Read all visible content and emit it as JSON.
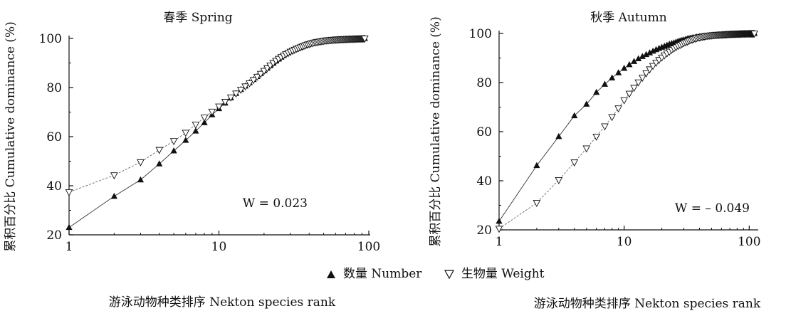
{
  "figure": {
    "legend": {
      "number_label": "数量 Number",
      "weight_label": "生物量 Weight"
    }
  },
  "chart_data": [
    {
      "type": "scatter",
      "title": "春季 Spring",
      "xlabel": "游泳动物种类排序 Nekton species rank",
      "ylabel": "累积百分比 Cumulative dominance (%)",
      "x_scale": "log",
      "xlim": [
        1,
        100
      ],
      "ylim": [
        20,
        100
      ],
      "x_ticks": [
        1,
        10,
        100
      ],
      "x_tick_labels": [
        "1",
        "10",
        "100"
      ],
      "y_ticks": [
        20,
        40,
        60,
        80,
        100
      ],
      "y_tick_labels": [
        "20",
        "40",
        "60",
        "80",
        "100"
      ],
      "annotation": "W = 0.023",
      "series": [
        {
          "name": "数量 Number",
          "marker": "filled-triangle",
          "x": [
            1,
            2,
            3,
            4,
            5,
            6,
            7,
            8,
            9,
            10,
            11,
            12,
            13,
            14,
            15,
            16,
            17,
            18,
            19,
            20,
            21,
            22,
            23,
            24,
            25,
            26,
            27,
            28,
            29,
            30,
            31,
            32,
            33,
            34,
            35,
            36,
            37,
            38,
            39,
            40,
            41,
            42,
            43,
            44,
            45,
            46,
            47,
            48,
            49,
            50,
            51,
            52,
            53,
            54,
            55,
            56,
            57,
            58,
            59,
            60,
            61,
            62,
            63,
            64,
            65,
            66,
            67,
            68,
            69,
            70,
            71,
            72,
            73,
            74,
            75,
            76,
            77,
            78,
            79,
            80,
            81,
            82,
            83,
            84,
            85,
            86,
            87,
            88,
            89,
            90,
            91,
            92,
            93,
            94
          ],
          "y": [
            23.0,
            35.7,
            42.4,
            48.9,
            54.2,
            58.5,
            62.3,
            65.7,
            68.9,
            71.4,
            73.7,
            75.8,
            77.6,
            79.2,
            80.6,
            82.0,
            83.3,
            84.5,
            85.7,
            86.8,
            87.9,
            88.9,
            89.9,
            90.8,
            91.6,
            92.4,
            93.1,
            93.7,
            94.2,
            94.7,
            95.1,
            95.5,
            95.9,
            96.2,
            96.5,
            96.8,
            97.1,
            97.4,
            97.6,
            97.8,
            98.0,
            98.2,
            98.4,
            98.5,
            98.6,
            98.7,
            98.8,
            98.9,
            99.0,
            99.1,
            99.15,
            99.2,
            99.25,
            99.3,
            99.35,
            99.4,
            99.43,
            99.46,
            99.49,
            99.52,
            99.55,
            99.58,
            99.6,
            99.62,
            99.64,
            99.66,
            99.68,
            99.7,
            99.72,
            99.74,
            99.76,
            99.78,
            99.8,
            99.81,
            99.82,
            99.83,
            99.84,
            99.85,
            99.86,
            99.87,
            99.88,
            99.89,
            99.9,
            99.91,
            99.92,
            99.93,
            99.94,
            99.95,
            99.96,
            99.97,
            99.98,
            99.99,
            100.0,
            100.0
          ]
        },
        {
          "name": "生物量 Weight",
          "marker": "open-triangle-down",
          "x": [
            1,
            2,
            3,
            4,
            5,
            6,
            7,
            8,
            9,
            10,
            11,
            12,
            13,
            14,
            15,
            16,
            17,
            18,
            19,
            20,
            21,
            22,
            23,
            24,
            25,
            26,
            27,
            28,
            29,
            30,
            31,
            32,
            33,
            34,
            35,
            36,
            37,
            38,
            39,
            40,
            41,
            42,
            43,
            44,
            45,
            46,
            47,
            48,
            49,
            50,
            51,
            52,
            53,
            54,
            55,
            56,
            57,
            58,
            59,
            60,
            61,
            62,
            63,
            64,
            65,
            66,
            67,
            68,
            69,
            70,
            71,
            72,
            73,
            74,
            75,
            76,
            77,
            78,
            79,
            80,
            81,
            82,
            83,
            84,
            85,
            86,
            87,
            88,
            89,
            90,
            91,
            92,
            93,
            94
          ],
          "y": [
            37.4,
            44.3,
            49.6,
            54.6,
            58.2,
            61.6,
            64.9,
            67.8,
            70.2,
            72.3,
            74.2,
            76.0,
            77.6,
            79.1,
            80.5,
            81.8,
            83.1,
            84.4,
            85.6,
            86.8,
            87.9,
            89.0,
            90.0,
            90.9,
            91.7,
            92.4,
            93.0,
            93.6,
            94.1,
            94.6,
            95.0,
            95.4,
            95.8,
            96.1,
            96.4,
            96.7,
            97.0,
            97.3,
            97.5,
            97.7,
            97.9,
            98.1,
            98.3,
            98.4,
            98.5,
            98.6,
            98.7,
            98.8,
            98.9,
            99.0,
            99.1,
            99.15,
            99.2,
            99.25,
            99.3,
            99.35,
            99.4,
            99.43,
            99.46,
            99.49,
            99.52,
            99.55,
            99.58,
            99.6,
            99.62,
            99.64,
            99.66,
            99.68,
            99.7,
            99.72,
            99.74,
            99.76,
            99.78,
            99.8,
            99.81,
            99.82,
            99.83,
            99.84,
            99.85,
            99.86,
            99.87,
            99.88,
            99.89,
            99.9,
            99.91,
            99.92,
            99.93,
            99.94,
            99.95,
            99.96,
            99.97,
            99.98,
            99.99,
            100.0
          ]
        }
      ]
    },
    {
      "type": "scatter",
      "title": "秋季 Autumn",
      "xlabel": "游泳动物种类排序 Nekton species rank",
      "ylabel": "累积百分比 Cumulative dominance (%)",
      "x_scale": "log",
      "xlim": [
        1,
        115
      ],
      "ylim": [
        20,
        100
      ],
      "x_ticks": [
        1,
        10,
        100
      ],
      "x_tick_labels": [
        "1",
        "10",
        "100"
      ],
      "y_ticks": [
        20,
        40,
        60,
        80,
        100
      ],
      "y_tick_labels": [
        "20",
        "40",
        "60",
        "80",
        "100"
      ],
      "annotation": "W = – 0.049",
      "series": [
        {
          "name": "数量 Number",
          "marker": "filled-triangle",
          "x": [
            1,
            2,
            3,
            4,
            5,
            6,
            7,
            8,
            9,
            10,
            11,
            12,
            13,
            14,
            15,
            16,
            17,
            18,
            19,
            20,
            21,
            22,
            23,
            24,
            25,
            26,
            27,
            28,
            29,
            30,
            31,
            32,
            33,
            34,
            35,
            36,
            37,
            38,
            39,
            40,
            41,
            42,
            43,
            44,
            45,
            46,
            47,
            48,
            49,
            50,
            51,
            52,
            53,
            54,
            55,
            56,
            57,
            58,
            59,
            60,
            61,
            62,
            63,
            64,
            65,
            66,
            67,
            68,
            69,
            70,
            71,
            72,
            73,
            74,
            75,
            76,
            77,
            78,
            79,
            80,
            81,
            82,
            83,
            84,
            85,
            86,
            87,
            88,
            89,
            90,
            91,
            92,
            93,
            94,
            95,
            96,
            97,
            98,
            99,
            100,
            101,
            102,
            103,
            104,
            105,
            106,
            107,
            108,
            109,
            110
          ],
          "y": [
            23.5,
            46.2,
            58.0,
            66.5,
            71.2,
            76.0,
            79.3,
            81.9,
            84.0,
            85.8,
            87.3,
            88.6,
            89.7,
            90.6,
            91.4,
            92.1,
            92.8,
            93.4,
            93.9,
            94.4,
            94.8,
            95.2,
            95.6,
            95.9,
            96.2,
            96.5,
            96.8,
            97.0,
            97.2,
            97.4,
            97.6,
            97.8,
            98.0,
            98.1,
            98.2,
            98.3,
            98.4,
            98.5,
            98.6,
            98.7,
            98.8,
            98.85,
            98.9,
            98.95,
            99.0,
            99.05,
            99.1,
            99.15,
            99.2,
            99.25,
            99.3,
            99.33,
            99.36,
            99.39,
            99.42,
            99.45,
            99.48,
            99.5,
            99.52,
            99.54,
            99.56,
            99.58,
            99.6,
            99.62,
            99.64,
            99.66,
            99.68,
            99.7,
            99.72,
            99.74,
            99.76,
            99.77,
            99.78,
            99.79,
            99.8,
            99.81,
            99.82,
            99.83,
            99.84,
            99.85,
            99.86,
            99.87,
            99.88,
            99.89,
            99.9,
            99.91,
            99.92,
            99.93,
            99.94,
            99.95,
            99.95,
            99.96,
            99.96,
            99.97,
            99.97,
            99.98,
            99.98,
            99.98,
            99.99,
            99.99,
            99.99,
            99.99,
            100.0,
            100.0,
            100.0,
            100.0,
            100.0,
            100.0,
            100.0,
            100.0
          ]
        },
        {
          "name": "生物量 Weight",
          "marker": "open-triangle-down",
          "x": [
            1,
            2,
            3,
            4,
            5,
            6,
            7,
            8,
            9,
            10,
            11,
            12,
            13,
            14,
            15,
            16,
            17,
            18,
            19,
            20,
            21,
            22,
            23,
            24,
            25,
            26,
            27,
            28,
            29,
            30,
            31,
            32,
            33,
            34,
            35,
            36,
            37,
            38,
            39,
            40,
            41,
            42,
            43,
            44,
            45,
            46,
            47,
            48,
            49,
            50,
            51,
            52,
            53,
            54,
            55,
            56,
            57,
            58,
            59,
            60,
            61,
            62,
            63,
            64,
            65,
            66,
            67,
            68,
            69,
            70,
            71,
            72,
            73,
            74,
            75,
            76,
            77,
            78,
            79,
            80,
            81,
            82,
            83,
            84,
            85,
            86,
            87,
            88,
            89,
            90,
            91,
            92,
            93,
            94,
            95,
            96,
            97,
            98,
            99,
            100,
            101,
            102,
            103,
            104,
            105,
            106,
            107,
            108,
            109,
            110
          ],
          "y": [
            20.5,
            31.0,
            40.3,
            47.5,
            53.2,
            58.0,
            62.2,
            66.0,
            69.5,
            72.8,
            75.5,
            77.9,
            80.1,
            82.0,
            83.8,
            85.4,
            86.8,
            88.1,
            89.2,
            90.2,
            91.1,
            91.9,
            92.6,
            93.3,
            93.9,
            94.4,
            94.9,
            95.3,
            95.7,
            96.1,
            96.4,
            96.7,
            97.0,
            97.3,
            97.5,
            97.7,
            97.9,
            98.1,
            98.3,
            98.4,
            98.5,
            98.6,
            98.7,
            98.8,
            98.9,
            99.0,
            99.05,
            99.1,
            99.15,
            99.2,
            99.25,
            99.3,
            99.33,
            99.36,
            99.39,
            99.42,
            99.45,
            99.48,
            99.5,
            99.52,
            99.54,
            99.56,
            99.58,
            99.6,
            99.62,
            99.64,
            99.66,
            99.68,
            99.7,
            99.72,
            99.74,
            99.76,
            99.77,
            99.78,
            99.79,
            99.8,
            99.81,
            99.82,
            99.83,
            99.84,
            99.85,
            99.86,
            99.87,
            99.88,
            99.89,
            99.9,
            99.91,
            99.92,
            99.93,
            99.94,
            99.95,
            99.95,
            99.96,
            99.96,
            99.97,
            99.97,
            99.98,
            99.98,
            99.98,
            99.99,
            99.99,
            99.99,
            99.99,
            100.0,
            100.0,
            100.0,
            100.0,
            100.0,
            100.0,
            100.0
          ]
        }
      ]
    }
  ]
}
